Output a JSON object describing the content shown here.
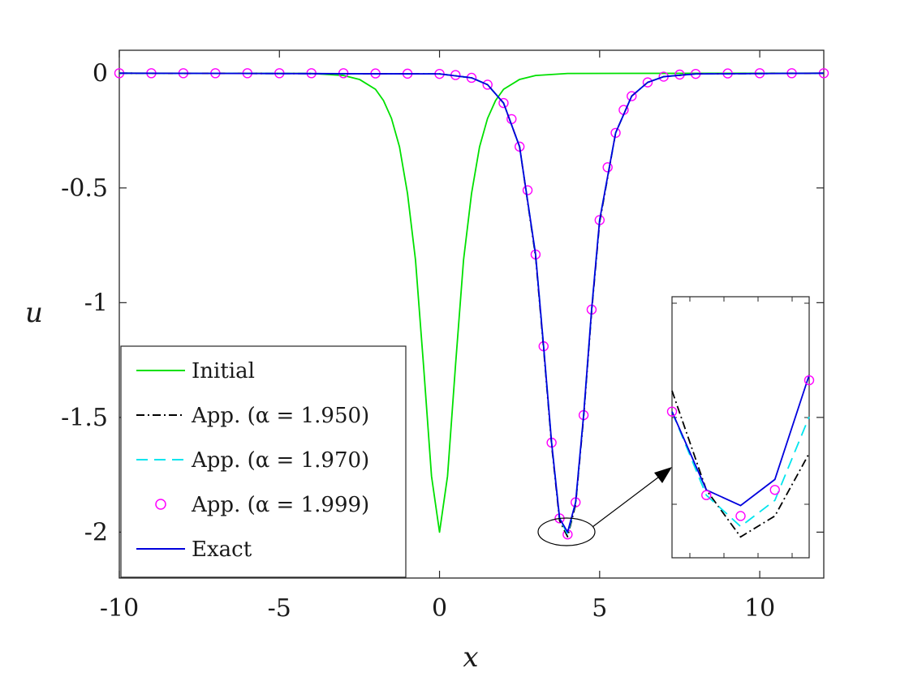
{
  "chart_data": {
    "type": "line",
    "title": "",
    "xlabel": "x",
    "ylabel": "u",
    "xlim": [
      -10,
      12
    ],
    "ylim": [
      -2.2,
      0.1
    ],
    "xticks": [
      -10,
      -5,
      0,
      5,
      10
    ],
    "yticks": [
      0,
      -0.5,
      -1,
      -1.5,
      -2
    ],
    "xtick_labels": [
      "-10",
      "-5",
      "0",
      "5",
      "10"
    ],
    "ytick_labels": [
      "0",
      "-0.5",
      "-1",
      "-1.5",
      "-2"
    ],
    "grid": false,
    "legend_position": "bottom-left",
    "series": [
      {
        "name": "Initial",
        "color": "#00e000",
        "style": "solid",
        "x": [
          -10,
          -4,
          -3,
          -2.5,
          -2,
          -1.75,
          -1.5,
          -1.25,
          -1,
          -0.75,
          -0.5,
          -0.25,
          0,
          0.25,
          0.5,
          0.75,
          1,
          1.25,
          1.5,
          1.75,
          2,
          2.5,
          3,
          4,
          12
        ],
        "y": [
          0,
          -0.001,
          -0.01,
          -0.027,
          -0.07,
          -0.119,
          -0.197,
          -0.321,
          -0.524,
          -0.814,
          -1.272,
          -1.756,
          -2,
          -1.756,
          -1.272,
          -0.814,
          -0.524,
          -0.321,
          -0.197,
          -0.119,
          -0.07,
          -0.027,
          -0.01,
          -0.001,
          0
        ]
      },
      {
        "name": "App. (α = 1.950)",
        "color": "#000000",
        "style": "dashdot",
        "x": [
          -10,
          0,
          1,
          1.5,
          2,
          2.5,
          3,
          3.25,
          3.5,
          3.75,
          4,
          4.25,
          4.5,
          4.75,
          5,
          5.5,
          6,
          6.5,
          7,
          8,
          12
        ],
        "y": [
          0,
          -0.003,
          -0.02,
          -0.05,
          -0.13,
          -0.32,
          -0.8,
          -1.2,
          -1.62,
          -1.95,
          -2.02,
          -1.88,
          -1.5,
          -1.04,
          -0.65,
          -0.26,
          -0.1,
          -0.04,
          -0.015,
          -0.003,
          0
        ]
      },
      {
        "name": "App. (α = 1.970)",
        "color": "#00e5ee",
        "style": "dashed",
        "x": [
          -10,
          0,
          1,
          1.5,
          2,
          2.5,
          3,
          3.25,
          3.5,
          3.75,
          4,
          4.25,
          4.5,
          4.75,
          5,
          5.5,
          6,
          6.5,
          7,
          8,
          12
        ],
        "y": [
          0,
          -0.003,
          -0.02,
          -0.05,
          -0.13,
          -0.32,
          -0.79,
          -1.19,
          -1.61,
          -1.94,
          -2.01,
          -1.87,
          -1.49,
          -1.03,
          -0.64,
          -0.26,
          -0.1,
          -0.04,
          -0.015,
          -0.003,
          0
        ]
      },
      {
        "name": "App. (α = 1.999)",
        "color": "#ff00ff",
        "style": "markers",
        "marker": "circle",
        "x": [
          -10,
          -9,
          -8,
          -7,
          -6,
          -5,
          -4,
          -3,
          -2,
          -1,
          0,
          0.5,
          1,
          1.5,
          2,
          2.25,
          2.5,
          2.75,
          3,
          3.25,
          3.5,
          3.75,
          4,
          4.25,
          4.5,
          4.75,
          5,
          5.25,
          5.5,
          5.75,
          6,
          6.5,
          7,
          7.5,
          8,
          9,
          10,
          11,
          12
        ],
        "y": [
          0,
          0,
          0,
          0,
          0,
          0,
          0,
          0,
          -0.001,
          -0.002,
          -0.003,
          -0.008,
          -0.02,
          -0.05,
          -0.13,
          -0.2,
          -0.32,
          -0.51,
          -0.79,
          -1.19,
          -1.61,
          -1.94,
          -2.01,
          -1.87,
          -1.49,
          -1.03,
          -0.64,
          -0.41,
          -0.26,
          -0.16,
          -0.1,
          -0.04,
          -0.015,
          -0.006,
          -0.003,
          -0.001,
          0,
          0,
          0
        ]
      },
      {
        "name": "Exact",
        "color": "#0000dd",
        "style": "solid",
        "x": [
          -10,
          0,
          1,
          1.5,
          2,
          2.5,
          3,
          3.25,
          3.5,
          3.75,
          4,
          4.25,
          4.5,
          4.75,
          5,
          5.5,
          6,
          6.5,
          7,
          8,
          12
        ],
        "y": [
          0,
          -0.003,
          -0.02,
          -0.05,
          -0.13,
          -0.32,
          -0.79,
          -1.19,
          -1.61,
          -1.94,
          -2,
          -1.87,
          -1.49,
          -1.03,
          -0.64,
          -0.26,
          -0.1,
          -0.04,
          -0.015,
          -0.003,
          0
        ]
      }
    ]
  },
  "legend": {
    "items": [
      {
        "label": "Initial",
        "color": "#00e000",
        "style": "solid"
      },
      {
        "label": "App. (α = 1.950)",
        "color": "#000000",
        "style": "dashdot"
      },
      {
        "label": "App. (α = 1.970)",
        "color": "#00e5ee",
        "style": "dashed"
      },
      {
        "label": "App. (α = 1.999)",
        "color": "#ff00ff",
        "style": "markers"
      },
      {
        "label": "Exact",
        "color": "#0000dd",
        "style": "solid"
      }
    ]
  },
  "inset": {
    "description": "zoom",
    "xlim": [
      3.6,
      4.4
    ],
    "ylim": [
      -2.1,
      -1.6
    ],
    "points_exact": [
      [
        3.6,
        -1.82
      ],
      [
        3.8,
        -1.97
      ],
      [
        4.0,
        -2.0
      ],
      [
        4.2,
        -1.95
      ],
      [
        4.4,
        -1.75
      ]
    ],
    "points_a195": [
      [
        3.6,
        -1.78
      ],
      [
        3.8,
        -1.97
      ],
      [
        4.0,
        -2.06
      ],
      [
        4.2,
        -2.02
      ],
      [
        4.4,
        -1.9
      ]
    ],
    "points_a197": [
      [
        3.6,
        -1.82
      ],
      [
        3.8,
        -1.98
      ],
      [
        4.0,
        -2.04
      ],
      [
        4.2,
        -1.99
      ],
      [
        4.4,
        -1.83
      ]
    ],
    "points_a1999": [
      [
        3.6,
        -1.82
      ],
      [
        3.8,
        -1.98
      ],
      [
        4.0,
        -2.02
      ],
      [
        4.2,
        -1.97
      ],
      [
        4.4,
        -1.76
      ]
    ]
  }
}
